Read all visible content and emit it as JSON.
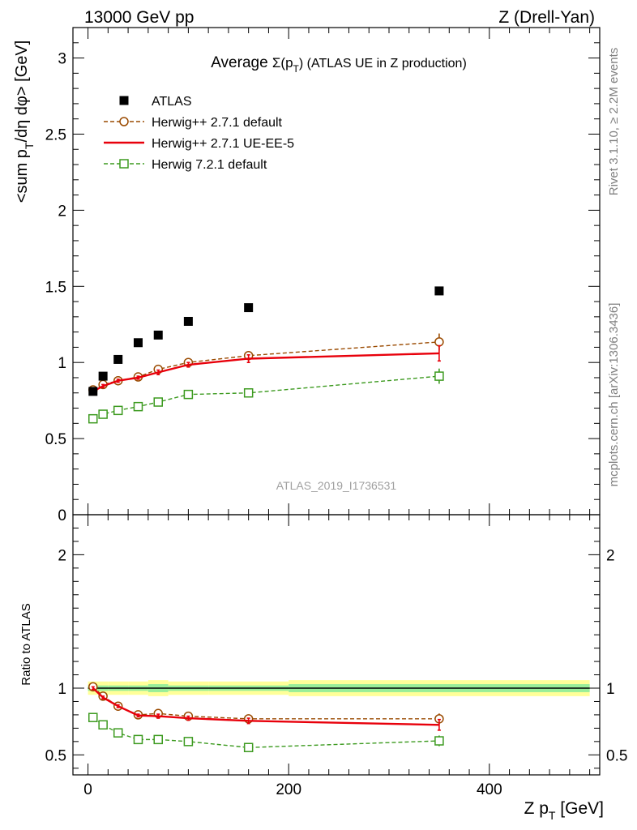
{
  "header": {
    "left": "13000 GeV pp",
    "right": "Z (Drell-Yan)"
  },
  "side_text": {
    "top": "Rivet 3.1.10, ≥ 2.2M events",
    "bottom": "mcplots.cern.ch [arXiv:1306.3436]"
  },
  "chart_data": {
    "type": "scatter",
    "title_prefix": "Average ",
    "title_symbol": "Σ(p",
    "title_sub": "T",
    "title_suffix": ") (ATLAS UE in Z production)",
    "watermark": "ATLAS_2019_I1736531",
    "xlabel": "Z p",
    "xlabel_sub": "T",
    "xlabel_suffix": " [GeV]",
    "xlim": [
      -15,
      510
    ],
    "xticks": [
      "0",
      "200",
      "400"
    ],
    "xtick_values": [
      0,
      200,
      400
    ],
    "main": {
      "ylabel_parts": [
        "<sum p",
        "T",
        "/dη dφ> [GeV]"
      ],
      "ylim": [
        0,
        3.2
      ],
      "ytick_labels": [
        "0",
        "0.5",
        "1",
        "1.5",
        "2",
        "2.5",
        "3"
      ],
      "ytick_values": [
        0,
        0.5,
        1,
        1.5,
        2,
        2.5,
        3
      ]
    },
    "ratio": {
      "ylabel": "Ratio to ATLAS",
      "ylim": [
        0.35,
        2.3
      ],
      "ytick_labels": [
        "0.5",
        "1",
        "2"
      ],
      "ytick_values": [
        0.5,
        1,
        2
      ],
      "band_segments": [
        {
          "x0": 0,
          "x1": 10,
          "inner": 0.02,
          "outer": 0.05
        },
        {
          "x0": 10,
          "x1": 20,
          "inner": 0.02,
          "outer": 0.05
        },
        {
          "x0": 20,
          "x1": 40,
          "inner": 0.02,
          "outer": 0.05
        },
        {
          "x0": 40,
          "x1": 60,
          "inner": 0.02,
          "outer": 0.05
        },
        {
          "x0": 60,
          "x1": 80,
          "inner": 0.03,
          "outer": 0.06
        },
        {
          "x0": 80,
          "x1": 120,
          "inner": 0.02,
          "outer": 0.05
        },
        {
          "x0": 120,
          "x1": 200,
          "inner": 0.02,
          "outer": 0.05
        },
        {
          "x0": 200,
          "x1": 500,
          "inner": 0.03,
          "outer": 0.06
        }
      ]
    },
    "legend": [
      "ATLAS",
      "Herwig++ 2.7.1 default",
      "Herwig++ 2.7.1 UE-EE-5",
      "Herwig 7.2.1 default"
    ],
    "series": [
      {
        "name": "ATLAS",
        "style": "data",
        "color": "#000000",
        "x": [
          5,
          15,
          30,
          50,
          70,
          100,
          160,
          350
        ],
        "values": [
          0.81,
          0.91,
          1.02,
          1.13,
          1.18,
          1.27,
          1.36,
          1.47
        ]
      },
      {
        "name": "Herwig++ 2.7.1 default",
        "style": "circle-dashed",
        "color": "#9a4a00",
        "x": [
          5,
          15,
          30,
          50,
          70,
          100,
          160,
          350
        ],
        "values": [
          0.82,
          0.855,
          0.88,
          0.905,
          0.955,
          1.0,
          1.045,
          1.135
        ],
        "errors": [
          0.01,
          0.01,
          0.01,
          0.01,
          0.015,
          0.015,
          0.02,
          0.055
        ],
        "ratio": [
          1.01,
          0.94,
          0.865,
          0.8,
          0.81,
          0.79,
          0.77,
          0.77
        ],
        "ratio_errors": [
          0.01,
          0.01,
          0.01,
          0.01,
          0.015,
          0.015,
          0.02,
          0.04
        ]
      },
      {
        "name": "Herwig++ 2.7.1 UE-EE-5",
        "style": "solid",
        "color": "#e8000b",
        "x": [
          5,
          15,
          30,
          50,
          70,
          100,
          160,
          350
        ],
        "values": [
          0.81,
          0.845,
          0.88,
          0.9,
          0.935,
          0.985,
          1.025,
          1.06
        ],
        "errors": [
          0.01,
          0.01,
          0.01,
          0.01,
          0.015,
          0.015,
          0.025,
          0.05
        ],
        "ratio": [
          1.0,
          0.93,
          0.865,
          0.795,
          0.79,
          0.775,
          0.755,
          0.725
        ],
        "ratio_errors": [
          0.01,
          0.01,
          0.01,
          0.01,
          0.015,
          0.015,
          0.02,
          0.04
        ]
      },
      {
        "name": "Herwig 7.2.1 default",
        "style": "square-dashed",
        "color": "#3c9a1f",
        "x": [
          5,
          15,
          30,
          50,
          70,
          100,
          160,
          350
        ],
        "values": [
          0.63,
          0.66,
          0.685,
          0.71,
          0.74,
          0.79,
          0.8,
          0.91
        ],
        "errors": [
          0.01,
          0.01,
          0.01,
          0.01,
          0.015,
          0.015,
          0.02,
          0.05
        ],
        "ratio": [
          0.78,
          0.725,
          0.665,
          0.615,
          0.615,
          0.6,
          0.555,
          0.605
        ],
        "ratio_errors": [
          0.01,
          0.01,
          0.01,
          0.01,
          0.015,
          0.015,
          0.02,
          0.04
        ]
      }
    ]
  }
}
